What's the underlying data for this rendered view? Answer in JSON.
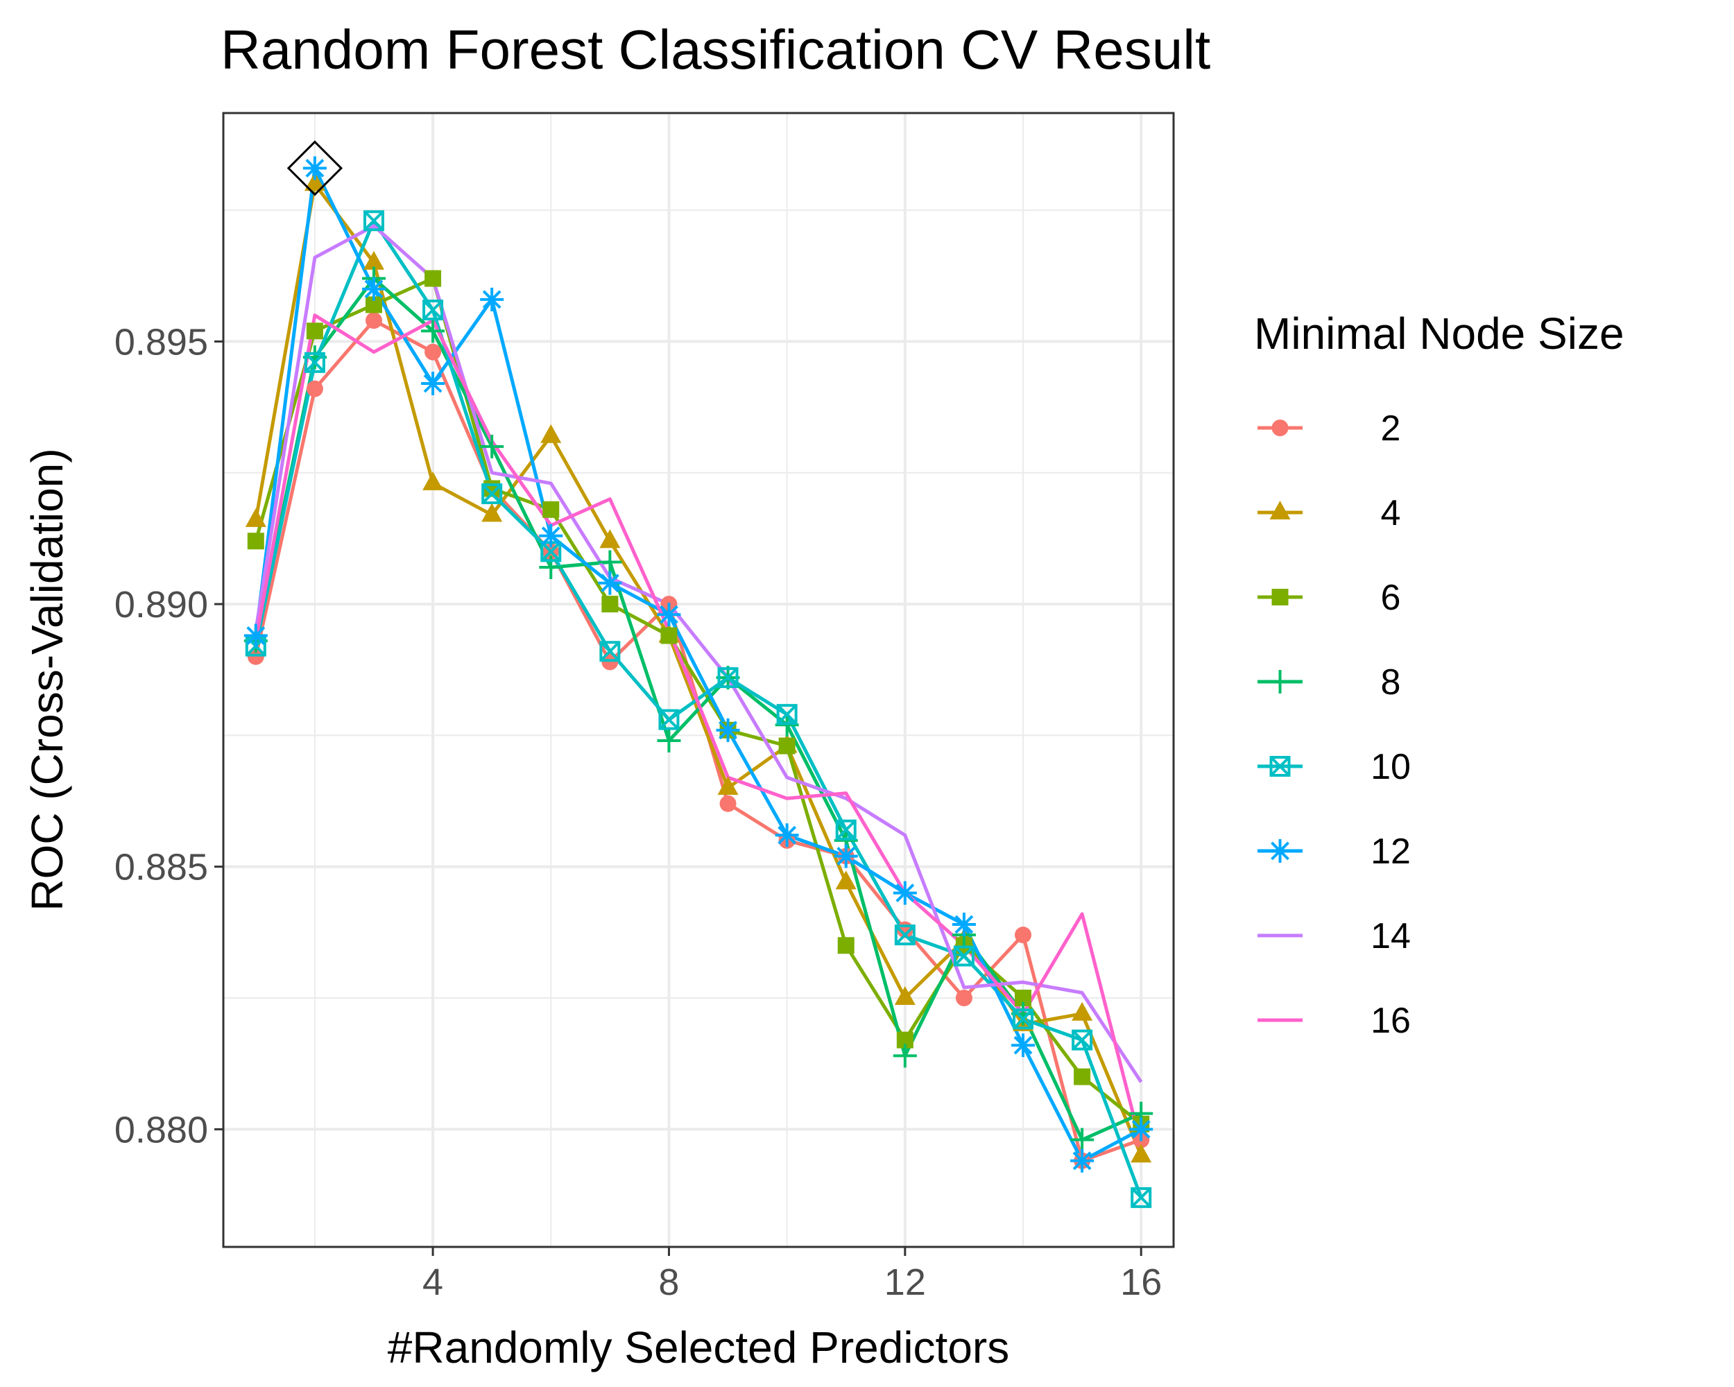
{
  "chart_data": {
    "type": "line",
    "title": "Random Forest Classification CV Result",
    "xlabel": "#Randomly Selected Predictors",
    "ylabel": "ROC (Cross-Validation)",
    "xlim": [
      0.45,
      16.55
    ],
    "ylim": [
      0.87776,
      0.89935
    ],
    "x_ticks": [
      4,
      8,
      12,
      16
    ],
    "x_tick_labels": [
      "4",
      "8",
      "12",
      "16"
    ],
    "y_ticks": [
      0.88,
      0.885,
      0.89,
      0.895
    ],
    "y_tick_labels": [
      "0.880",
      "0.885",
      "0.890",
      "0.895"
    ],
    "grid": true,
    "legend": {
      "title": "Minimal Node Size",
      "placement": "right"
    },
    "best_point": {
      "x": 2,
      "y": 0.8983
    },
    "x": [
      1,
      2,
      3,
      4,
      5,
      6,
      7,
      8,
      9,
      10,
      11,
      12,
      13,
      14,
      15,
      16
    ],
    "series": [
      {
        "name": "2",
        "color": "#F8766D",
        "marker": "circle",
        "values": [
          0.889,
          0.8941,
          0.8954,
          0.8948,
          0.8922,
          0.891,
          0.8889,
          0.89,
          0.8862,
          0.8855,
          0.8852,
          0.8838,
          0.8825,
          0.8837,
          0.8794,
          0.8798
        ]
      },
      {
        "name": "4",
        "color": "#C49A00",
        "marker": "triangle",
        "values": [
          0.8916,
          0.898,
          0.8965,
          0.8923,
          0.8917,
          0.8932,
          0.8912,
          0.8894,
          0.8865,
          0.8873,
          0.8847,
          0.8825,
          0.8836,
          0.882,
          0.8822,
          0.8795
        ]
      },
      {
        "name": "6",
        "color": "#7CAE00",
        "marker": "square",
        "values": [
          0.8912,
          0.8952,
          0.8957,
          0.8962,
          0.8922,
          0.8918,
          0.89,
          0.8894,
          0.8876,
          0.8873,
          0.8835,
          0.8817,
          0.8835,
          0.8825,
          0.881,
          0.8801
        ]
      },
      {
        "name": "8",
        "color": "#00BE67",
        "marker": "plus",
        "values": [
          0.8893,
          0.8947,
          0.8962,
          0.8952,
          0.893,
          0.8907,
          0.8908,
          0.8874,
          0.8886,
          0.8877,
          0.8855,
          0.8814,
          0.8837,
          0.8822,
          0.8798,
          0.8803
        ]
      },
      {
        "name": "10",
        "color": "#00BFC4",
        "marker": "square-x",
        "values": [
          0.8892,
          0.8946,
          0.8973,
          0.8956,
          0.8921,
          0.891,
          0.8891,
          0.8878,
          0.8886,
          0.8879,
          0.8857,
          0.8837,
          0.8833,
          0.8821,
          0.8817,
          0.8787
        ]
      },
      {
        "name": "12",
        "color": "#00A9FF",
        "marker": "asterisk",
        "values": [
          0.8894,
          0.8983,
          0.896,
          0.8942,
          0.8958,
          0.8913,
          0.8904,
          0.8898,
          0.8876,
          0.8856,
          0.8852,
          0.8845,
          0.8839,
          0.8816,
          0.8794,
          0.88
        ]
      },
      {
        "name": "14",
        "color": "#C77CFF",
        "marker": "none",
        "values": [
          0.8895,
          0.8966,
          0.8972,
          0.8962,
          0.8925,
          0.8923,
          0.8905,
          0.89,
          0.8886,
          0.8867,
          0.8863,
          0.8856,
          0.8827,
          0.8828,
          0.8826,
          0.8809
        ]
      },
      {
        "name": "16",
        "color": "#FF61CC",
        "marker": "none",
        "values": [
          0.8893,
          0.8955,
          0.8948,
          0.8954,
          0.8931,
          0.8915,
          0.892,
          0.8895,
          0.8867,
          0.8863,
          0.8864,
          0.8845,
          0.8835,
          0.8822,
          0.8841,
          0.8797
        ]
      }
    ]
  }
}
